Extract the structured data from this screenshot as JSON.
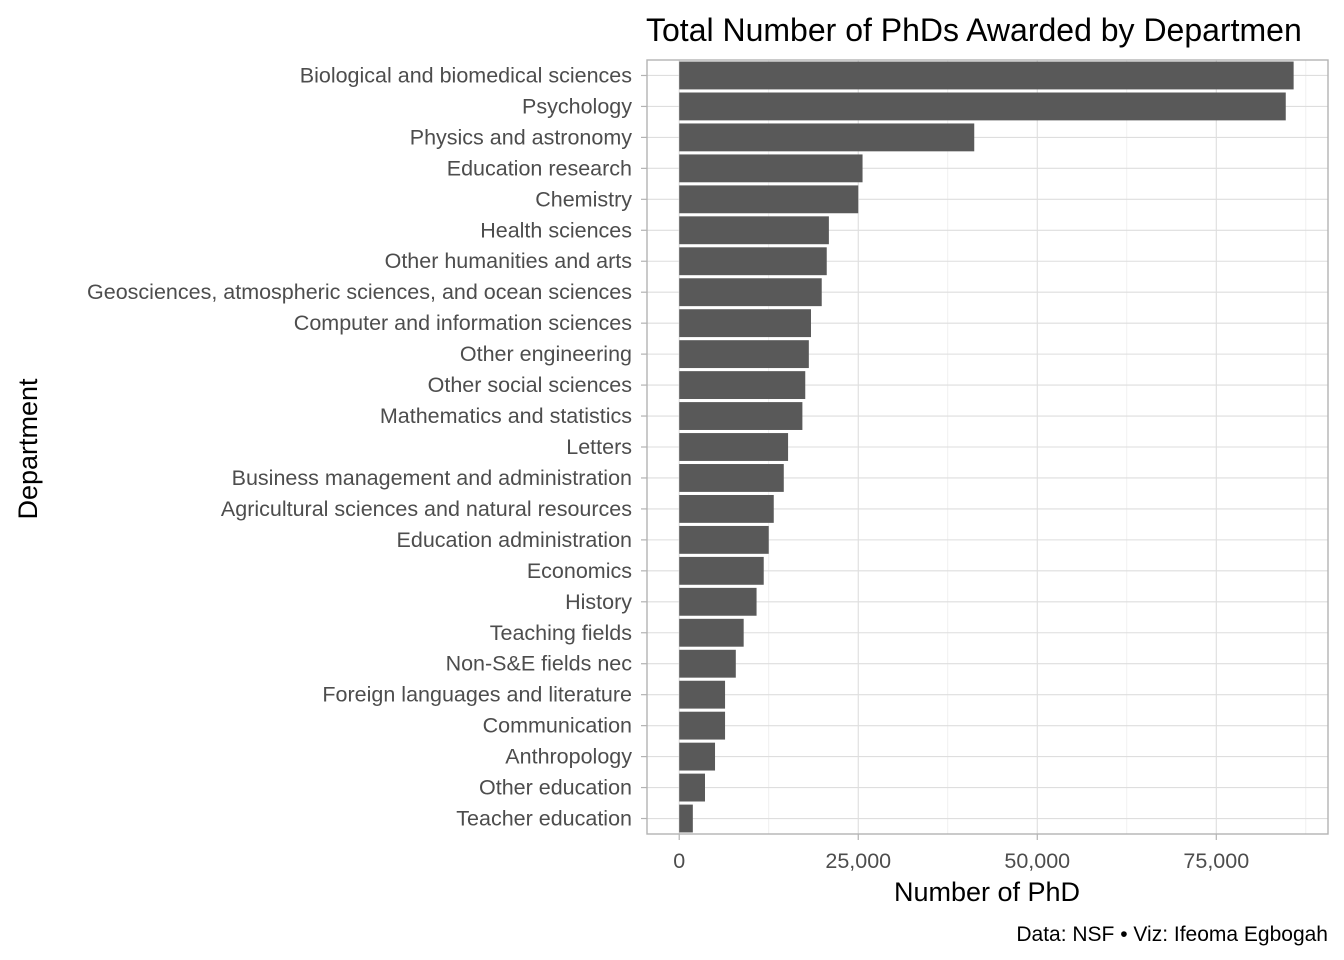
{
  "chart_data": {
    "type": "bar",
    "orientation": "horizontal",
    "title": "Total Number of PhDs Awarded by Departmen",
    "xlabel": "Number of PhD",
    "ylabel": "Department",
    "caption": "Data: NSF • Viz: Ifeoma Egbogah",
    "categories": [
      "Biological and biomedical sciences",
      "Psychology",
      "Physics and astronomy",
      "Education research",
      "Chemistry",
      "Health sciences",
      "Other humanities and arts",
      "Geosciences, atmospheric sciences, and ocean sciences",
      "Computer and information sciences",
      "Other engineering",
      "Other social sciences",
      "Mathematics and statistics",
      "Letters",
      "Business management and administration",
      "Agricultural sciences and natural resources",
      "Education administration",
      "Economics",
      "History",
      "Teaching fields",
      "Non-S&E fields nec",
      "Foreign languages and literature",
      "Communication",
      "Anthropology",
      "Other education",
      "Teacher education"
    ],
    "values": [
      85800,
      84700,
      41200,
      25600,
      25000,
      20900,
      20600,
      19900,
      18400,
      18100,
      17600,
      17200,
      15200,
      14600,
      13200,
      12500,
      11800,
      10800,
      9000,
      7900,
      6400,
      6400,
      5000,
      3600,
      1900
    ],
    "xlim": [
      -4500,
      90600
    ],
    "x_ticks": [
      0,
      25000,
      50000,
      75000
    ],
    "x_tick_labels": [
      "0",
      "25,000",
      "50,000",
      "75,000"
    ],
    "grid": true,
    "bar_color": "#595959",
    "panel_border_color": "#b3b3b3",
    "grid_color": "#dedede"
  }
}
